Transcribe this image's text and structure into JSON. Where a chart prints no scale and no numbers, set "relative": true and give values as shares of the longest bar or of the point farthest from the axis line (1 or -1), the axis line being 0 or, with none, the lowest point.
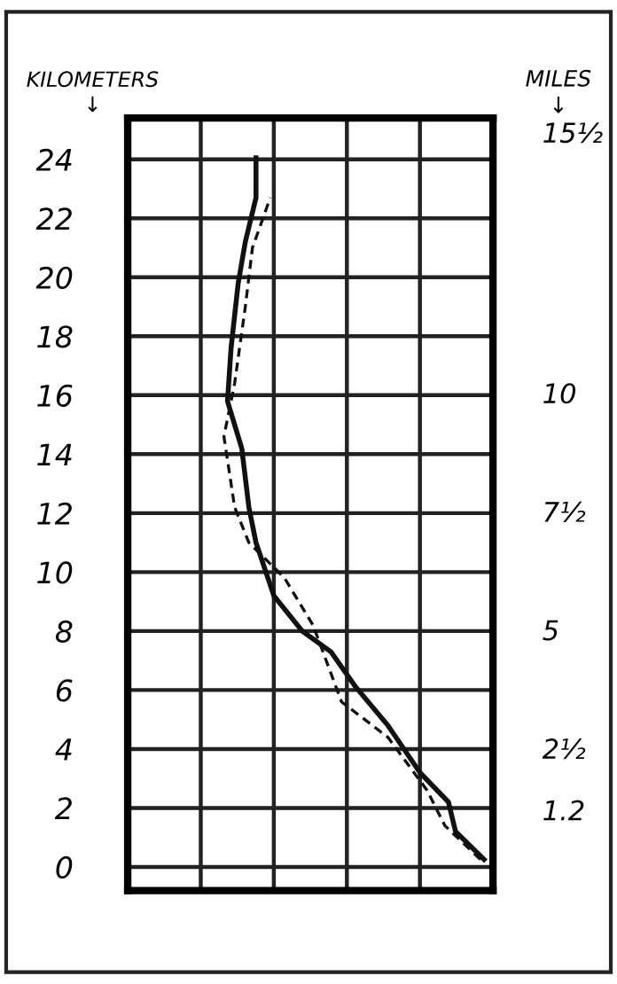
{
  "chart_data": {
    "type": "line",
    "orientation": "horizontal",
    "relative": true,
    "ylabel": "KILOMETERS\n↓",
    "y2label": "MILES\n↓",
    "ylim": [
      -0.8,
      25.4
    ],
    "yticks": [
      0,
      2,
      4,
      6,
      8,
      10,
      12,
      14,
      16,
      18,
      20,
      22,
      24
    ],
    "y2lim": [
      -0.5,
      15.8
    ],
    "y2ticks": [
      1.2,
      {
        "value": 2.5,
        "label": "2½"
      },
      5,
      {
        "value": 7.5,
        "label": "7½"
      },
      10,
      {
        "value": 15.5,
        "label": "15½"
      }
    ],
    "grid": true,
    "marker": "none",
    "series": [
      {
        "color": "#111111",
        "line_style": "solid",
        "x": [
          0.25,
          1.2,
          2.2,
          3.2,
          4.8,
          6.1,
          7.3,
          8.0,
          9.2,
          11.0,
          12.2,
          14.2,
          15.8,
          17.6,
          19.8,
          21.2,
          22.7,
          24.05
        ],
        "values": [
          1,
          0.92,
          0.9,
          0.82,
          0.73,
          0.64,
          0.57,
          0.49,
          0.41,
          0.36,
          0.34,
          0.32,
          0.28,
          0.29,
          0.31,
          0.33,
          0.36,
          0.36
        ]
      },
      {
        "color": "#111111",
        "line_style": "dashed",
        "x": [
          0.25,
          1.4,
          2.6,
          4.4,
          5.6,
          8.2,
          9.8,
          11.0,
          12.2,
          14.6,
          16.4,
          19.0,
          21.0,
          22.7
        ],
        "values": [
          0.99,
          0.89,
          0.84,
          0.73,
          0.6,
          0.52,
          0.44,
          0.34,
          0.3,
          0.27,
          0.3,
          0.33,
          0.35,
          0.4
        ]
      }
    ]
  }
}
